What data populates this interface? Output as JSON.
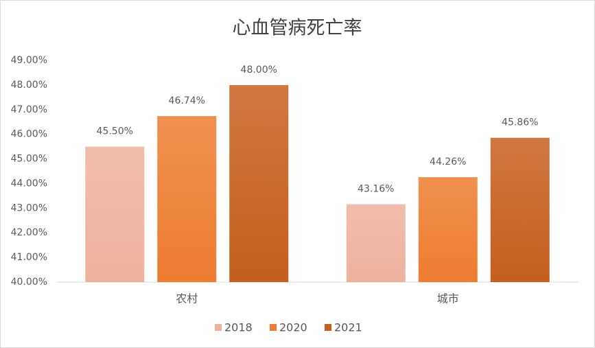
{
  "chart_data": {
    "type": "bar",
    "title": "心血管病死亡率",
    "categories": [
      "农村",
      "城市"
    ],
    "series": [
      {
        "name": "2018",
        "color": "#eeb29c",
        "values": [
          45.5,
          43.16
        ],
        "value_labels": [
          "45.50%",
          "43.16%"
        ]
      },
      {
        "name": "2020",
        "color": "#ed7d31",
        "values": [
          46.74,
          44.26
        ],
        "value_labels": [
          "46.74%",
          "44.26%"
        ]
      },
      {
        "name": "2021",
        "color": "#c65f1e",
        "values": [
          48.0,
          45.86
        ],
        "value_labels": [
          "48.00%",
          "45.86%"
        ]
      }
    ],
    "ylim": [
      40,
      49
    ],
    "yticks": [
      {
        "value": 40,
        "label": "40.00%"
      },
      {
        "value": 41,
        "label": "41.00%"
      },
      {
        "value": 42,
        "label": "42.00%"
      },
      {
        "value": 43,
        "label": "43.00%"
      },
      {
        "value": 44,
        "label": "44.00%"
      },
      {
        "value": 45,
        "label": "45.00%"
      },
      {
        "value": 46,
        "label": "46.00%"
      },
      {
        "value": 47,
        "label": "47.00%"
      },
      {
        "value": 48,
        "label": "48.00%"
      },
      {
        "value": 49,
        "label": "49.00%"
      }
    ],
    "grid": false,
    "legend": "bottom"
  }
}
